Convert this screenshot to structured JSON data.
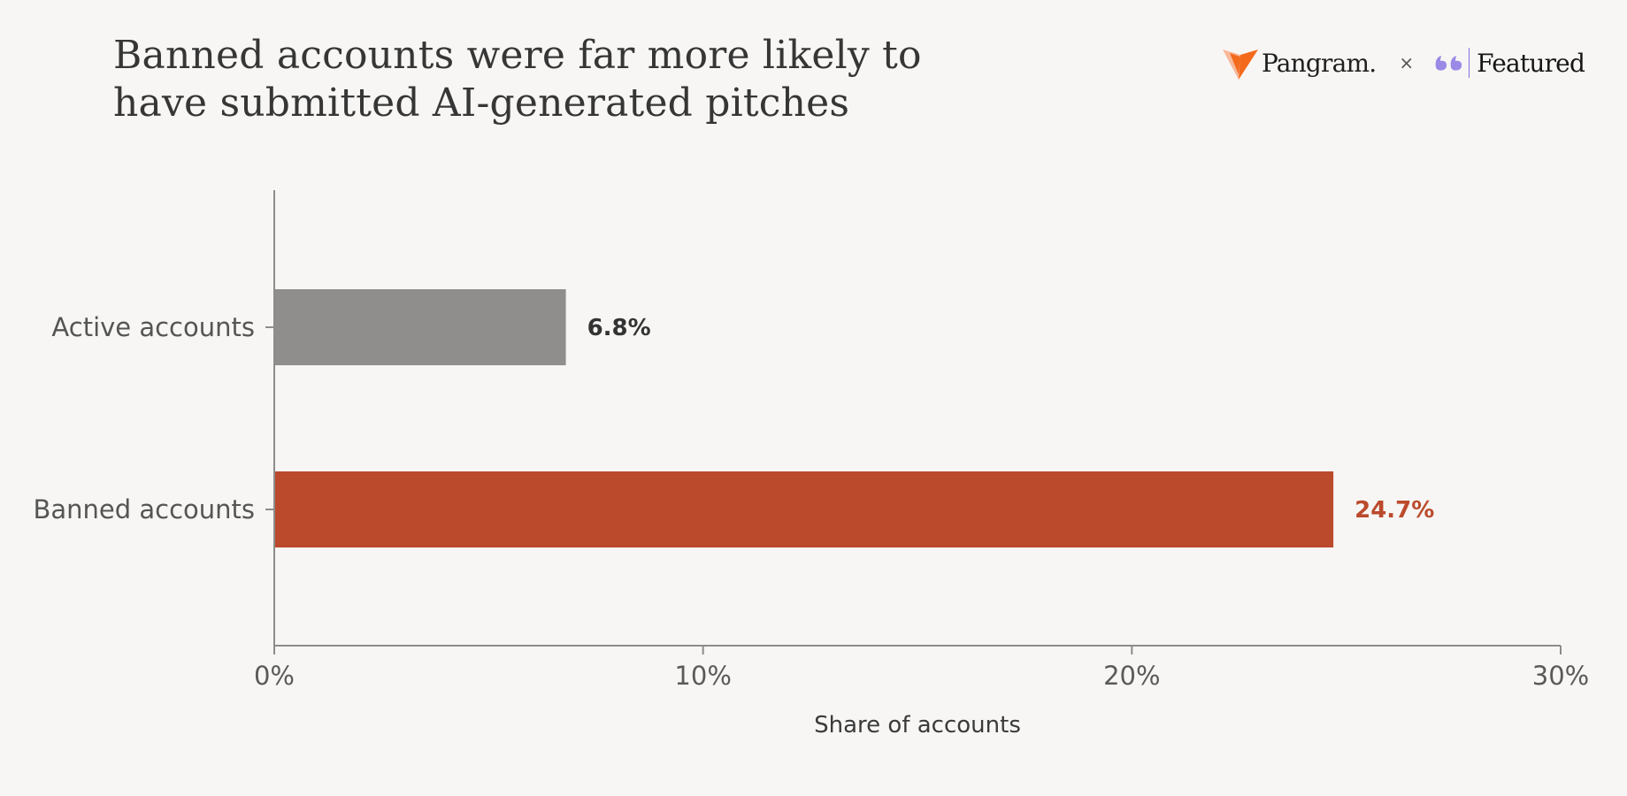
{
  "chart_data": {
    "type": "bar",
    "orientation": "horizontal",
    "title": "Banned accounts were far more likely to have submitted AI-generated pitches",
    "xlabel": "Share of accounts",
    "ylabel": "",
    "xlim": [
      0,
      30
    ],
    "x_ticks": [
      0,
      10,
      20,
      30
    ],
    "x_tick_labels": [
      "0%",
      "10%",
      "20%",
      "30%"
    ],
    "categories": [
      "Active accounts",
      "Banned accounts"
    ],
    "values": [
      6.8,
      24.7
    ],
    "value_labels": [
      "6.8%",
      "24.7%"
    ],
    "colors": [
      "#8f8e8c",
      "#bb4a2c"
    ],
    "label_colors": [
      "#333333",
      "#bb4a2c"
    ],
    "grid": false,
    "legend": "none"
  },
  "branding": {
    "pangram_name": "Pangram.",
    "times_symbol": "×",
    "featured_name": "Featured",
    "pangram_color": "#f36a1d",
    "featured_color": "#9b8ae6",
    "pangram_icon": "pangram-logo-icon",
    "featured_icon": "featured-quote-icon"
  }
}
